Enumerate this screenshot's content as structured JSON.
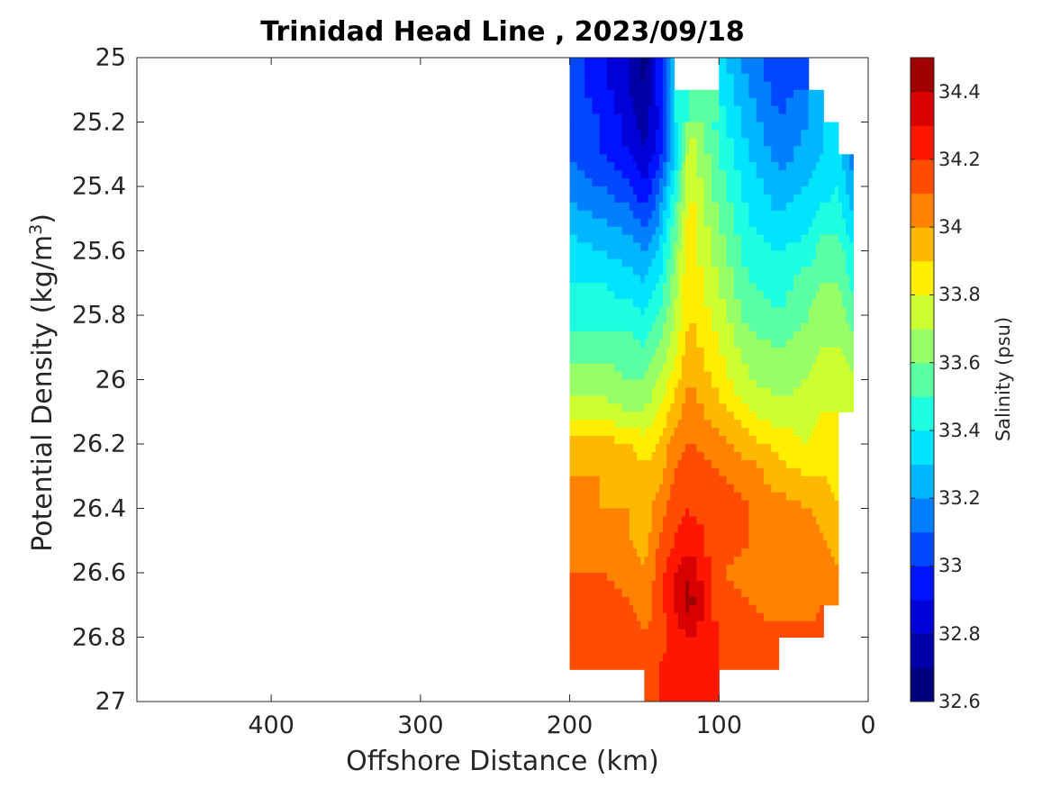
{
  "chart_data": {
    "type": "heatmap",
    "subtype": "filled-contour",
    "title": "Trinidad Head Line , 2023/09/18",
    "xlabel": "Offshore Distance (km)",
    "ylabel": "Potential Density (kg/m^3)",
    "ylabel_parts": {
      "base": "Potential Density (kg/m",
      "sup": "3",
      "tail": ")"
    },
    "xlim": [
      490,
      0
    ],
    "x_reversed": true,
    "ylim": [
      25,
      27
    ],
    "y_reversed": true,
    "xticks": [
      400,
      300,
      200,
      100,
      0
    ],
    "yticks": [
      25,
      25.2,
      25.4,
      25.6,
      25.8,
      26,
      26.2,
      26.4,
      26.6,
      26.8,
      27
    ],
    "colorbar": {
      "label": "Salinity (psu)",
      "range": [
        32.6,
        34.5
      ],
      "ticks": [
        32.6,
        32.8,
        33,
        33.2,
        33.4,
        33.6,
        33.8,
        34,
        34.2,
        34.4
      ],
      "levels": [
        32.6,
        32.7,
        32.8,
        32.9,
        33.0,
        33.1,
        33.2,
        33.3,
        33.4,
        33.5,
        33.6,
        33.7,
        33.8,
        33.9,
        34.0,
        34.1,
        34.2,
        34.3,
        34.4,
        34.5
      ],
      "colors": [
        "#00007f",
        "#0000a6",
        "#0000d8",
        "#0012ff",
        "#0048ff",
        "#0080ff",
        "#00b6ff",
        "#00e4ff",
        "#1dffe0",
        "#5bffa3",
        "#96ff68",
        "#cdff30",
        "#ffee00",
        "#ffb800",
        "#ff8200",
        "#ff4c00",
        "#ff1600",
        "#d80000",
        "#a00000"
      ]
    },
    "stations_x": [
      200,
      180,
      160,
      150,
      140,
      130,
      120,
      100,
      80,
      60,
      40,
      30,
      20,
      10
    ],
    "density_levels": [
      25.0,
      25.1,
      25.2,
      25.3,
      25.4,
      25.5,
      25.6,
      25.7,
      25.8,
      25.9,
      26.0,
      26.1,
      26.2,
      26.3,
      26.4,
      26.5,
      26.6,
      26.7,
      26.8,
      26.9,
      27.0
    ],
    "salinity_grid": [
      [
        33.05,
        32.95,
        32.8,
        32.65,
        32.95,
        33.35,
        null,
        33.35,
        33.15,
        33.05,
        null,
        null,
        null,
        null
      ],
      [
        33.05,
        32.95,
        32.8,
        32.7,
        32.95,
        33.3,
        null,
        33.4,
        33.2,
        33.05,
        33.15,
        null,
        null,
        null
      ],
      [
        33.1,
        33.0,
        32.85,
        32.75,
        32.9,
        33.25,
        33.7,
        33.45,
        33.25,
        33.1,
        33.2,
        33.3,
        null,
        null
      ],
      [
        33.1,
        33.0,
        32.9,
        32.8,
        32.95,
        33.3,
        33.75,
        33.5,
        33.3,
        33.15,
        33.25,
        33.3,
        33.35,
        33.15
      ],
      [
        33.15,
        33.1,
        33.0,
        32.9,
        33.1,
        33.4,
        33.8,
        33.55,
        33.35,
        33.25,
        33.3,
        33.35,
        33.4,
        33.2
      ],
      [
        33.25,
        33.2,
        33.15,
        33.05,
        33.2,
        33.5,
        33.85,
        33.6,
        33.4,
        33.3,
        33.35,
        33.45,
        33.45,
        33.3
      ],
      [
        33.35,
        33.3,
        33.25,
        33.2,
        33.3,
        33.6,
        33.85,
        33.65,
        33.45,
        33.4,
        33.45,
        33.55,
        33.55,
        33.4
      ],
      [
        33.4,
        33.4,
        33.35,
        33.3,
        33.4,
        33.65,
        33.9,
        33.7,
        33.5,
        33.45,
        33.55,
        33.6,
        33.6,
        33.45
      ],
      [
        33.45,
        33.45,
        33.45,
        33.4,
        33.5,
        33.7,
        33.9,
        33.75,
        33.55,
        33.5,
        33.6,
        33.65,
        33.65,
        33.55
      ],
      [
        33.55,
        33.55,
        33.55,
        33.5,
        33.6,
        33.75,
        33.95,
        33.8,
        33.65,
        33.6,
        33.65,
        33.7,
        33.7,
        33.65
      ],
      [
        33.65,
        33.65,
        33.6,
        33.6,
        33.7,
        33.85,
        34.0,
        33.85,
        33.7,
        33.65,
        33.7,
        33.75,
        33.75,
        33.7
      ],
      [
        33.75,
        33.75,
        33.7,
        33.7,
        33.8,
        33.95,
        34.05,
        33.95,
        33.8,
        33.75,
        33.75,
        33.8,
        33.8,
        null
      ],
      [
        33.95,
        33.95,
        33.9,
        33.85,
        33.9,
        34.05,
        34.1,
        34.05,
        33.95,
        33.85,
        33.8,
        33.85,
        33.85,
        null
      ],
      [
        34.0,
        34.0,
        33.95,
        33.95,
        33.95,
        34.1,
        34.15,
        34.1,
        34.05,
        33.95,
        33.9,
        33.9,
        33.85,
        null
      ],
      [
        34.0,
        34.0,
        34.0,
        33.95,
        34.05,
        34.15,
        34.2,
        34.15,
        34.1,
        34.05,
        34.0,
        33.95,
        33.9,
        null
      ],
      [
        34.05,
        34.05,
        34.0,
        33.95,
        34.1,
        34.2,
        34.25,
        34.15,
        34.1,
        34.1,
        34.05,
        34.0,
        33.95,
        null
      ],
      [
        34.1,
        34.1,
        34.05,
        34.0,
        34.15,
        34.3,
        34.4,
        34.1,
        34.05,
        34.05,
        34.05,
        34.05,
        34.0,
        null
      ],
      [
        34.15,
        34.15,
        34.1,
        34.05,
        34.15,
        34.3,
        34.45,
        34.15,
        34.1,
        34.05,
        34.05,
        34.1,
        null,
        null
      ],
      [
        34.15,
        34.15,
        34.15,
        34.1,
        34.15,
        34.25,
        34.3,
        34.2,
        34.15,
        34.15,
        34.15,
        34.15,
        null,
        null
      ],
      [
        null,
        34.2,
        34.2,
        34.15,
        34.2,
        34.25,
        34.25,
        34.2,
        34.15,
        null,
        null,
        null,
        null,
        null
      ],
      [
        null,
        null,
        null,
        null,
        34.2,
        34.2,
        34.2,
        null,
        null,
        null,
        null,
        null,
        null,
        null
      ]
    ]
  }
}
